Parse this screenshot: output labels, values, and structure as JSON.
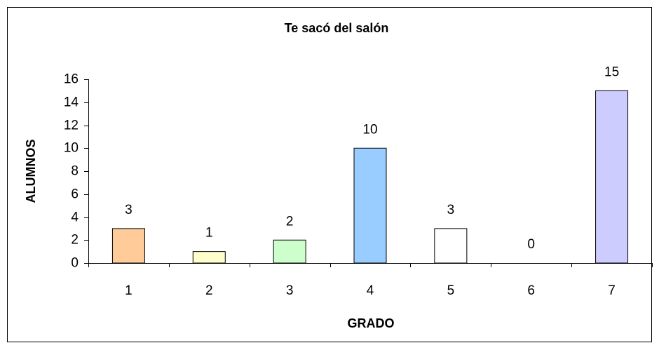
{
  "chart_data": {
    "type": "bar",
    "title": "Te sacó del salón",
    "x_label": "GRADO",
    "y_label": "ALUMNOS",
    "categories": [
      "1",
      "2",
      "3",
      "4",
      "5",
      "6",
      "7"
    ],
    "values": [
      3,
      1,
      2,
      10,
      3,
      0,
      15
    ],
    "colors": [
      "#ffcc99",
      "#ffffcc",
      "#ccffcc",
      "#99ccff",
      "#ffffff",
      "#ccffff",
      "#ccccff"
    ],
    "ylim": [
      0,
      16
    ],
    "yticks": [
      0,
      2,
      4,
      6,
      8,
      10,
      12,
      14,
      16
    ],
    "grid": false
  }
}
